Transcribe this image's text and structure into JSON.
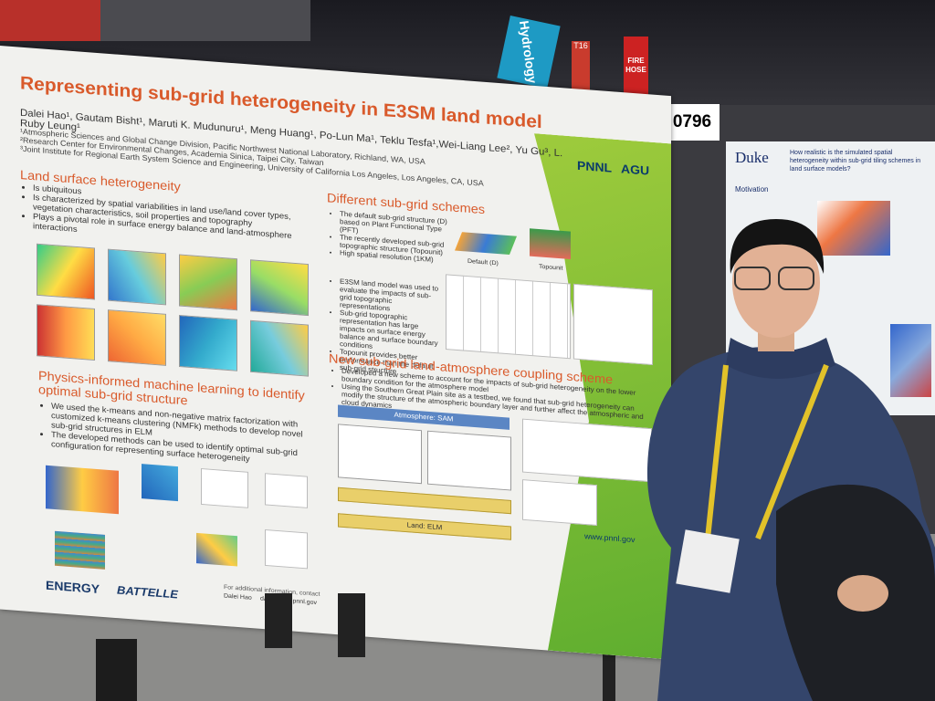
{
  "signs": {
    "hydrology": "Hydrology",
    "aisle": "T16",
    "fire_hose": "FIRE HOSE",
    "booth": "0796"
  },
  "poster": {
    "title": "Representing sub-grid heterogeneity in E3SM land model",
    "authors": "Dalei Hao¹, Gautam Bisht¹, Maruti K. Mudunuru¹, Meng Huang¹, Po-Lun Ma¹, Teklu Tesfa¹,Wei-Liang Lee², Yu Gu³, L. Ruby Leung¹",
    "affiliations": [
      "¹Atmospheric Sciences and Global Change Division, Pacific Northwest National Laboratory, Richland, WA, USA",
      "²Research Center for Environmental Changes, Academia Sinica, Taipei City, Taiwan",
      "³Joint Institute for Regional Earth System Science and Engineering, University of California Los Angeles, Los Angeles, CA, USA"
    ],
    "logos": [
      "PNNL",
      "AGU"
    ],
    "sections": [
      {
        "heading": "Land surface heterogeneity",
        "bullets": [
          "Is ubiquitous",
          "Is characterized by spatial variabilities in land use/land cover types, vegetation characteristics, soil properties and topography",
          "Plays a pivotal role in surface energy balance and land-atmosphere interactions"
        ]
      },
      {
        "heading": "Physics-informed machine learning to identify optimal sub-grid structure",
        "bullets": [
          "We used the k-means and non-negative matrix factorization with customized k-means clustering (NMFk) methods to develop novel sub-grid structures in ELM",
          "The developed methods can be used to identify optimal sub-grid configuration for representing surface heterogeneity"
        ]
      },
      {
        "heading": "Different sub-grid schemes",
        "bullets": [
          "The default sub-grid structure (D) based on Plant Functional Type (PFT)",
          "The recently developed sub-grid topographic structure (Topounit)",
          "High spatial resolution (1KM)",
          "E3SM land model was used to evaluate the impacts of sub-grid topographic representations",
          "Sub-grid topographic representation has large impacts on surface energy balance and surface boundary conditions",
          "Topounit provides better performance than the default sub-grid structure"
        ]
      },
      {
        "heading": "New sub-grid land-atmosphere coupling scheme",
        "bullets": [
          "Developed a new scheme to account for the impacts of sub-grid heterogeneity on the lower boundary condition for the atmosphere model",
          "Using the Southern Great Plain site as a testbed, we found that sub-grid heterogeneity can modify the structure of the atmospheric boundary layer and further affect the atmospheric and cloud dynamics"
        ]
      }
    ],
    "figure_labels": {
      "default": "Default (D)",
      "topounit": "Topounit",
      "atmosphere": "Atmosphere: SAM",
      "land": "Land: ELM"
    },
    "footer": {
      "contact_label": "For additional information, contact",
      "contact_name": "Dalei Hao",
      "email": "dalei.hao@pnnl.gov",
      "website": "www.pnnl.gov",
      "sponsors": [
        "ENERGY",
        "BATTELLE"
      ]
    }
  },
  "neighbor_poster": {
    "logo": "Duke",
    "title": "How realistic is the simulated spatial heterogeneity within sub-grid tiling schemes in land surface models?",
    "heading": "Motivation"
  }
}
